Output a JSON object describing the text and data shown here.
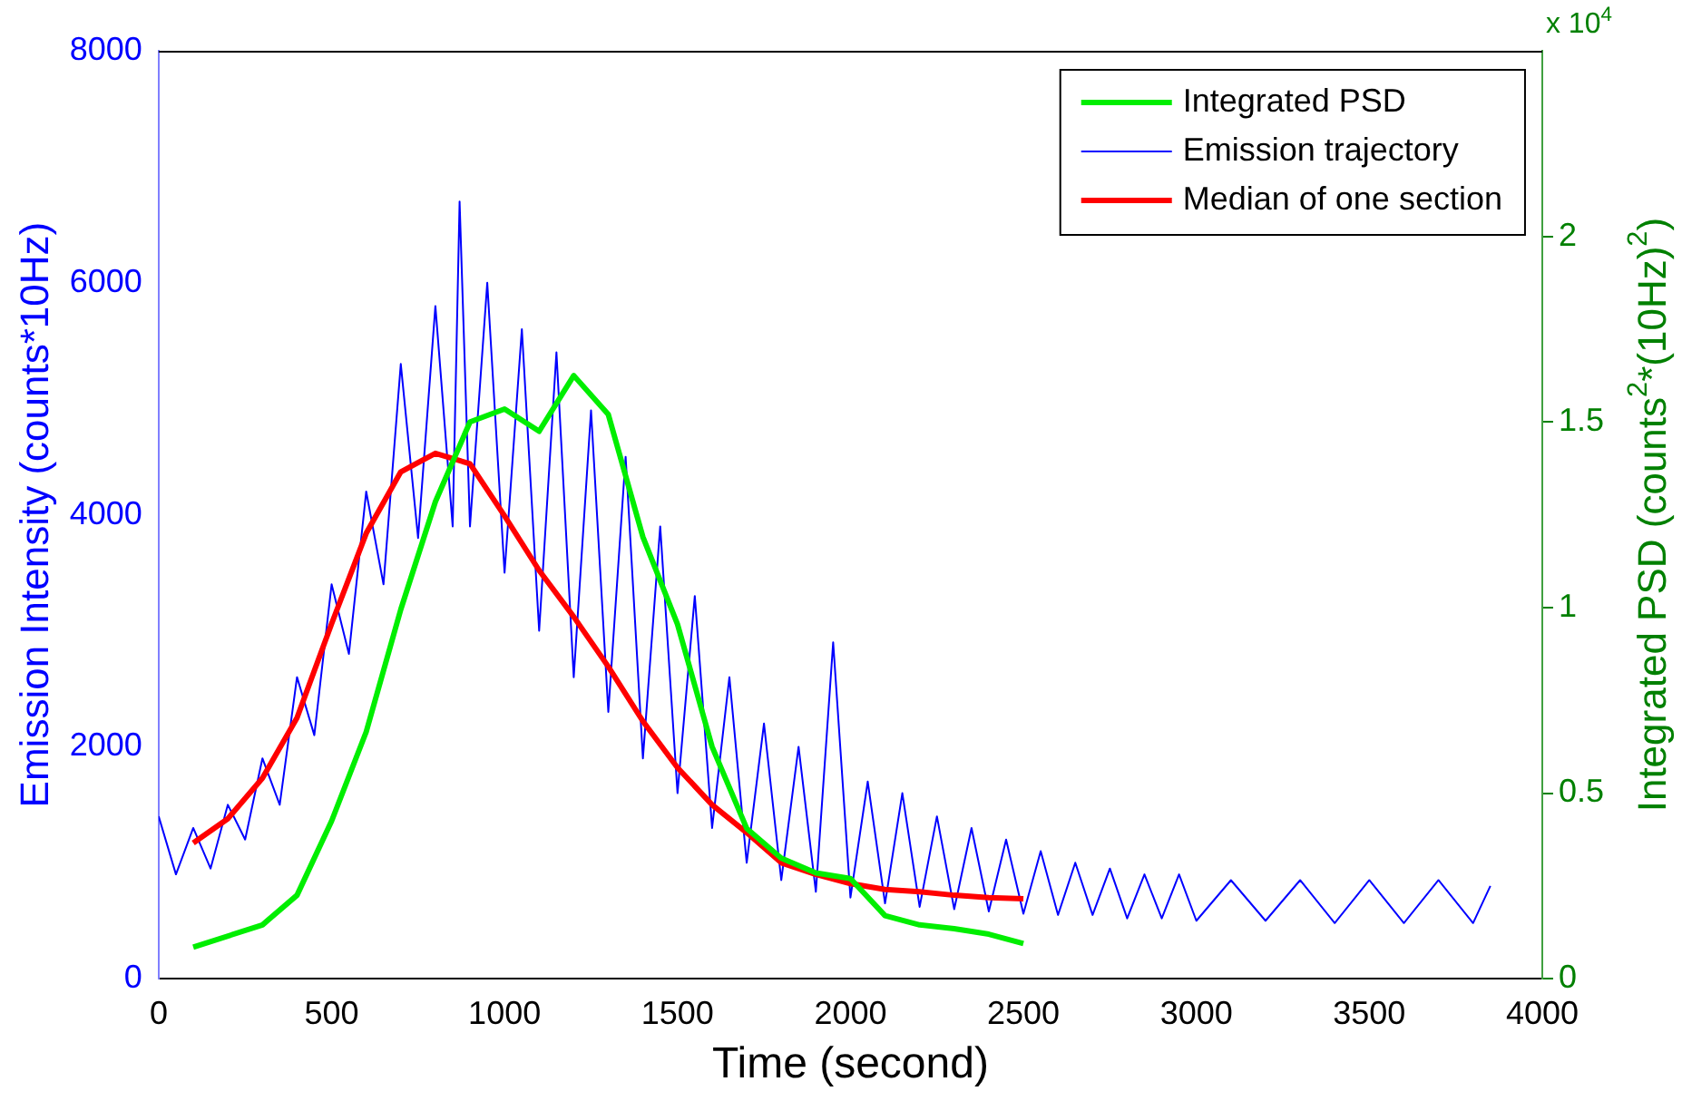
{
  "chart_data": {
    "type": "line",
    "xlabel": "Time (second)",
    "ylabel": "Emission Intensity (counts*10Hz)",
    "y2label": "Integrated PSD (counts$^{2}$*(10Hz)$^{2}$)",
    "xlim": [
      0,
      4000
    ],
    "xticks": [
      0,
      500,
      1000,
      1500,
      2000,
      2500,
      3000,
      3500,
      4000
    ],
    "ylim": [
      0,
      8000
    ],
    "yticks": [
      0,
      2000,
      4000,
      6000,
      8000
    ],
    "y2lim": [
      0,
      2.5
    ],
    "y2ticks": [
      0,
      0.5,
      1,
      1.5,
      2
    ],
    "annotations": [
      "x 10$^{4}$"
    ],
    "legend": "top right",
    "grid": false,
    "series": [
      {
        "name": "Integrated PSD",
        "color": "#00ee00",
        "axis": "y2",
        "x": [
          100,
          300,
          400,
          500,
          600,
          700,
          800,
          900,
          1000,
          1100,
          1200,
          1300,
          1400,
          1500,
          1600,
          1700,
          1800,
          1900,
          2000,
          2100,
          2200,
          2300,
          2400,
          2500
        ],
        "values": [
          0.085,
          0.145,
          0.225,
          0.425,
          0.665,
          0.995,
          1.285,
          1.5,
          1.535,
          1.475,
          1.625,
          1.52,
          1.19,
          0.955,
          0.625,
          0.405,
          0.325,
          0.285,
          0.27,
          0.17,
          0.145,
          0.135,
          0.12,
          0.095
        ]
      },
      {
        "name": "Emission trajectory",
        "color": "#0000ff",
        "x": [
          0,
          50,
          100,
          150,
          200,
          250,
          300,
          350,
          400,
          450,
          500,
          550,
          600,
          650,
          700,
          750,
          800,
          850,
          870,
          900,
          950,
          1000,
          1050,
          1100,
          1150,
          1200,
          1250,
          1300,
          1350,
          1400,
          1450,
          1500,
          1550,
          1600,
          1650,
          1700,
          1750,
          1800,
          1850,
          1900,
          1950,
          2000,
          2050,
          2100,
          2150,
          2200,
          2250,
          2300,
          2350,
          2400,
          2450,
          2500,
          2550,
          2600,
          2650,
          2700,
          2750,
          2800,
          2850,
          2900,
          2950,
          3000,
          3100,
          3200,
          3300,
          3400,
          3500,
          3600,
          3700,
          3800,
          3850
        ],
        "values": [
          1400,
          900,
          1300,
          950,
          1500,
          1200,
          1900,
          1500,
          2600,
          2100,
          3400,
          2800,
          4200,
          3400,
          5300,
          3800,
          5800,
          3900,
          6700,
          3900,
          6000,
          3500,
          5600,
          3000,
          5400,
          2600,
          4900,
          2300,
          4500,
          1900,
          3900,
          1600,
          3300,
          1300,
          2600,
          1000,
          2200,
          850,
          2000,
          750,
          2900,
          700,
          1700,
          650,
          1600,
          620,
          1400,
          600,
          1300,
          580,
          1200,
          560,
          1100,
          550,
          1000,
          550,
          950,
          520,
          900,
          520,
          900,
          500,
          850,
          500,
          850,
          480,
          850,
          480,
          850,
          480,
          800
        ]
      },
      {
        "name": "Median of one section",
        "color": "#ff0000",
        "x": [
          100,
          200,
          300,
          400,
          500,
          600,
          700,
          800,
          900,
          1000,
          1100,
          1200,
          1300,
          1400,
          1500,
          1600,
          1700,
          1800,
          1900,
          2000,
          2100,
          2200,
          2300,
          2400,
          2500
        ],
        "values": [
          1170,
          1380,
          1730,
          2250,
          3060,
          3840,
          4370,
          4530,
          4440,
          3990,
          3520,
          3120,
          2690,
          2220,
          1820,
          1500,
          1260,
          1000,
          900,
          820,
          770,
          750,
          720,
          700,
          690
        ]
      }
    ]
  }
}
